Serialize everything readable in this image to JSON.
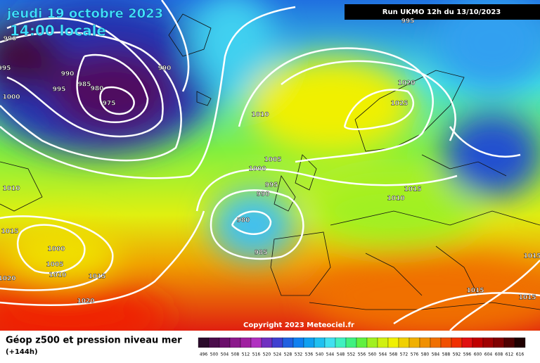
{
  "date": "jeudi 19 octobre 2023",
  "time": "14:00 locale",
  "run": "Run UKMO 12h du 13/10/2023",
  "copyright": "Copyright 2023 Meteociel.fr",
  "legend": {
    "title": "Géop z500 et pression niveau mer",
    "lead": "(+144h)",
    "values": [
      496,
      500,
      504,
      508,
      512,
      516,
      520,
      524,
      528,
      532,
      536,
      540,
      544,
      548,
      552,
      556,
      560,
      564,
      568,
      572,
      576,
      580,
      584,
      588,
      592,
      596,
      600,
      604,
      608,
      612,
      616
    ],
    "colors": [
      "#2b0b2b",
      "#4a0d4a",
      "#6b0f6b",
      "#8c1a8c",
      "#a020a0",
      "#b030c0",
      "#7030c0",
      "#4040d0",
      "#2060e0",
      "#1080f0",
      "#10a0f0",
      "#20c0f0",
      "#40e0f0",
      "#40f0c0",
      "#40f080",
      "#60f040",
      "#a0f020",
      "#d0f010",
      "#f0f000",
      "#f0d000",
      "#f0b000",
      "#f09000",
      "#f07000",
      "#f05000",
      "#f03000",
      "#e01010",
      "#c00000",
      "#a00000",
      "#800000",
      "#500000",
      "#200000"
    ]
  },
  "isobar_labels": [
    "990",
    "995",
    "990",
    "995",
    "990",
    "985",
    "980",
    "995",
    "975",
    "1000",
    "1010",
    "1020",
    "1025",
    "1005",
    "1000",
    "995",
    "990",
    "1015",
    "1010",
    "1010",
    "980",
    "985",
    "1015",
    "1000",
    "1005",
    "1010",
    "1015",
    "1020",
    "1020",
    "1015",
    "1015",
    "1015"
  ]
}
